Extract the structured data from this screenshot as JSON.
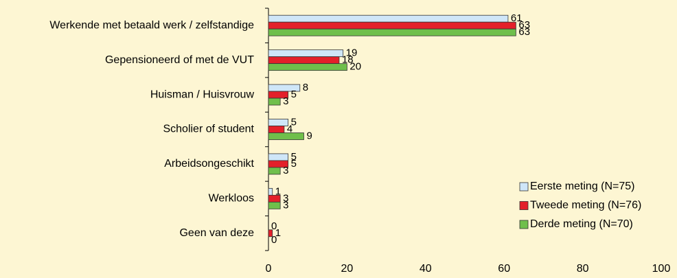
{
  "chart_data": {
    "type": "hbar",
    "categories": [
      "Werkende met betaald werk / zelfstandige",
      "Gepensioneerd of met de VUT",
      "Huisman / Huisvrouw",
      "Scholier of student",
      "Arbeidsongeschikt",
      "Werkloos",
      "Geen van deze"
    ],
    "series": [
      {
        "name": "Eerste meting (N=75)",
        "color": "#cfe6f8",
        "values": [
          61,
          19,
          8,
          5,
          5,
          1,
          0
        ]
      },
      {
        "name": "Tweede meting (N=76)",
        "color": "#e3202a",
        "values": [
          63,
          18,
          5,
          4,
          5,
          3,
          1
        ]
      },
      {
        "name": "Derde meting (N=70)",
        "color": "#6fbf4b",
        "values": [
          63,
          20,
          3,
          9,
          3,
          3,
          0
        ]
      }
    ],
    "xlim": [
      0,
      100
    ],
    "xticks": [
      0,
      20,
      40,
      60,
      80,
      100
    ],
    "grid": false,
    "legend": "lower right"
  }
}
